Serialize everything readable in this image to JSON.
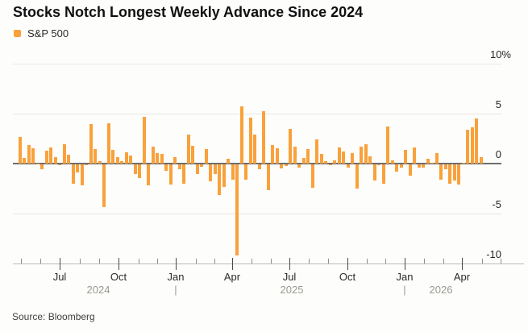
{
  "title": "Stocks Notch Longest Weekly Advance Since 2024",
  "legend": {
    "label": "S&P 500",
    "swatch_color": "#f9a13b"
  },
  "source": "Source: Bloomberg",
  "colors": {
    "bar": "#f9a13b",
    "grid": "#e9e7e2",
    "zero_line": "#6e6e6e",
    "axis_text": "#2b2b2b",
    "muted_text": "#9a9890",
    "title_text": "#111111",
    "background": "#fdfdfb"
  },
  "chart_data": {
    "type": "bar",
    "title": "Stocks Notch Longest Weekly Advance Since 2024",
    "series_name": "S&P 500",
    "unit": "% weekly change",
    "frequency": "weekly",
    "ylim": [
      -10,
      10
    ],
    "grid": true,
    "legend_position": "top-left",
    "y_tick_values": [
      10,
      5,
      0,
      -5,
      -10
    ],
    "y_tick_labels": [
      "10%",
      "5",
      "0",
      "-5",
      "-10"
    ],
    "x_major_tick_labels": [
      "Jul",
      "Oct",
      "Jan",
      "Apr",
      "Jul",
      "Oct",
      "Jan",
      "Apr"
    ],
    "year_row_labels": [
      "2024",
      "|",
      "2025",
      "|",
      "2026"
    ],
    "values": [
      2.67,
      0.55,
      1.85,
      1.54,
      0.03,
      -0.51,
      1.32,
      1.58,
      0.61,
      -0.08,
      1.95,
      0.87,
      -1.97,
      -0.83,
      -2.06,
      -0.04,
      3.93,
      1.45,
      0.24,
      -4.25,
      4.02,
      1.36,
      0.62,
      0.22,
      1.11,
      0.85,
      -0.96,
      -1.37,
      4.66,
      -2.08,
      1.68,
      1.06,
      0.96,
      -0.64,
      -1.99,
      0.67,
      -0.48,
      -1.94,
      2.91,
      1.74,
      -1.0,
      -0.24,
      1.47,
      -1.66,
      -0.98,
      -3.1,
      -2.27,
      0.51,
      -1.53,
      -9.08,
      5.7,
      -1.5,
      4.59,
      2.92,
      -0.47,
      5.27,
      -2.61,
      1.88,
      1.5,
      -0.39,
      -0.15,
      3.44,
      1.72,
      -0.31,
      0.59,
      1.46,
      -2.36,
      2.43,
      0.94,
      0.27,
      -0.1,
      0.33,
      1.59,
      1.22,
      -0.31,
      1.09,
      -2.43,
      1.7,
      1.92,
      0.71,
      -1.63,
      -0.08,
      -1.95,
      3.7,
      0.3,
      -0.7,
      -0.3,
      1.4,
      -1.1,
      1.6,
      -0.35,
      -0.3,
      0.45,
      0.1,
      1.05,
      -1.5,
      -0.5,
      -1.95,
      -1.6,
      -2.0,
      0.05,
      3.4,
      3.6,
      4.5,
      0.65
    ]
  }
}
